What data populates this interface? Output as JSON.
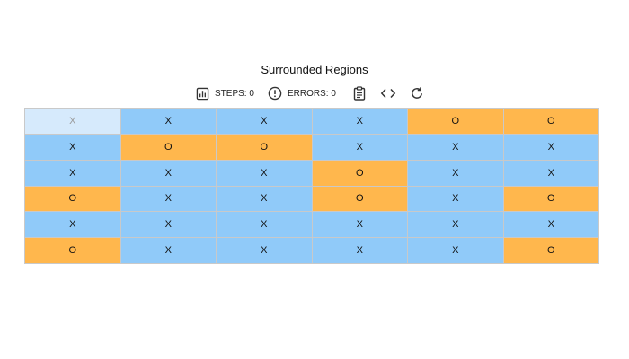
{
  "title": "Surrounded Regions",
  "toolbar": {
    "steps_label": "STEPS: 0",
    "errors_label": "ERRORS: 0",
    "icons": [
      "bar-chart-icon",
      "alert-circle-icon",
      "clipboard-icon",
      "code-icon",
      "refresh-icon"
    ]
  },
  "board": {
    "rows": [
      [
        "X",
        "X",
        "X",
        "X",
        "O",
        "O"
      ],
      [
        "X",
        "O",
        "O",
        "X",
        "X",
        "X"
      ],
      [
        "X",
        "X",
        "X",
        "O",
        "X",
        "X"
      ],
      [
        "O",
        "X",
        "X",
        "O",
        "X",
        "O"
      ],
      [
        "X",
        "X",
        "X",
        "X",
        "X",
        "X"
      ],
      [
        "O",
        "X",
        "X",
        "X",
        "X",
        "O"
      ]
    ],
    "selected": [
      0,
      0
    ]
  },
  "colors": {
    "x_cell": "#90caf9",
    "o_cell": "#ffb74d",
    "selected_cell": "#d6eafc"
  }
}
